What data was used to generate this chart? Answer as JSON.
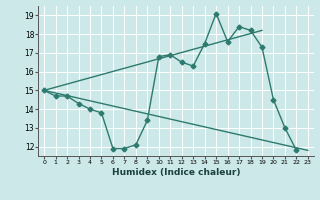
{
  "title": "",
  "xlabel": "Humidex (Indice chaleur)",
  "bg_color": "#cce8e8",
  "line_color": "#2d7a6e",
  "grid_color": "#ffffff",
  "xlim": [
    -0.5,
    23.5
  ],
  "ylim": [
    11.5,
    19.5
  ],
  "xticks": [
    0,
    1,
    2,
    3,
    4,
    5,
    6,
    7,
    8,
    9,
    10,
    11,
    12,
    13,
    14,
    15,
    16,
    17,
    18,
    19,
    20,
    21,
    22,
    23
  ],
  "yticks": [
    12,
    13,
    14,
    15,
    16,
    17,
    18,
    19
  ],
  "line1_x": [
    0,
    1,
    2,
    3,
    4,
    5,
    6,
    7,
    8,
    9,
    10,
    11,
    12,
    13,
    14,
    15,
    16,
    17,
    18,
    19,
    20,
    21,
    22,
    23
  ],
  "line1_y": [
    15.0,
    14.7,
    14.7,
    14.3,
    14.0,
    13.8,
    11.9,
    11.9,
    12.1,
    13.4,
    16.8,
    16.9,
    16.5,
    16.3,
    17.5,
    19.1,
    17.6,
    18.4,
    18.2,
    17.3,
    14.5,
    13.0,
    11.8,
    null
  ],
  "line2_x": [
    0,
    23
  ],
  "line2_y": [
    15.0,
    11.8
  ],
  "line3_x": [
    0,
    19
  ],
  "line3_y": [
    15.0,
    18.2
  ],
  "marker": "D",
  "markersize": 2.5,
  "linewidth": 1.0
}
